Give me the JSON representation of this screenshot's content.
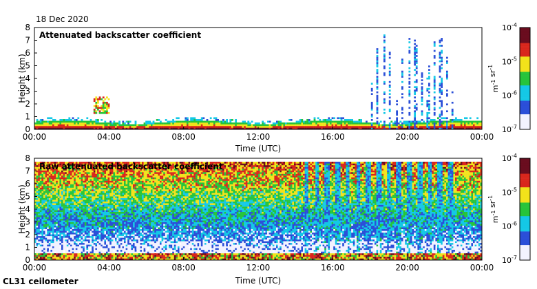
{
  "date_label": "18 Dec 2020",
  "footer_label": "CL31 ceilometer",
  "colors": {
    "low": "#f2f2ff",
    "blue": "#2b4fd8",
    "cyan": "#14c8e6",
    "green": "#26c43a",
    "yellow": "#f2e21b",
    "red": "#d9261c",
    "dark": "#6a0d1f"
  },
  "chart_data": [
    {
      "type": "heatmap",
      "title": "Attenuated backscatter coefficient",
      "xlabel": "Time (UTC)",
      "ylabel": "Height (km)",
      "x_ticks": [
        "00:00",
        "04:00",
        "08:00",
        "12:00",
        "16:00",
        "20:00",
        "00:00"
      ],
      "y_ticks": [
        "0",
        "1",
        "2",
        "3",
        "4",
        "5",
        "6",
        "7",
        "8"
      ],
      "xlim_hours": [
        0,
        24
      ],
      "ylim_km": [
        0,
        8
      ],
      "colorbar": {
        "scale": "log",
        "ticks": [
          "10^-7",
          "10^-6",
          "10^-5",
          "10^-4"
        ],
        "label": "m^-1 sr^-1"
      },
      "features": [
        {
          "kind": "boundary layer",
          "from_h": 0,
          "to_h": 24,
          "top_km": 0.6
        },
        {
          "kind": "cloud",
          "from_h": 3.2,
          "to_h": 4.0,
          "base_km": 1.2,
          "top_km": 2.6
        },
        {
          "kind": "fall streaks",
          "from_h": 17.8,
          "to_h": 22.5,
          "top_km": 7.5
        }
      ]
    },
    {
      "type": "heatmap",
      "title": "Raw attenuated backscatter coefficient",
      "xlabel": "Time (UTC)",
      "ylabel": "Height (km)",
      "x_ticks": [
        "00:00",
        "04:00",
        "08:00",
        "12:00",
        "16:00",
        "20:00",
        "00:00"
      ],
      "y_ticks": [
        "0",
        "1",
        "2",
        "3",
        "4",
        "5",
        "6",
        "7",
        "8"
      ],
      "xlim_hours": [
        0,
        24
      ],
      "ylim_km": [
        0,
        8
      ],
      "colorbar": {
        "scale": "log",
        "ticks": [
          "10^-7",
          "10^-6",
          "10^-5",
          "10^-4"
        ],
        "label": "m^-1 sr^-1"
      },
      "features": [
        {
          "kind": "noise field",
          "from_h": 0,
          "to_h": 24,
          "top_km": 7.7
        },
        {
          "kind": "low-signal streaks",
          "from_h": 14.5,
          "to_h": 22.5,
          "top_km": 7.7
        }
      ]
    }
  ]
}
